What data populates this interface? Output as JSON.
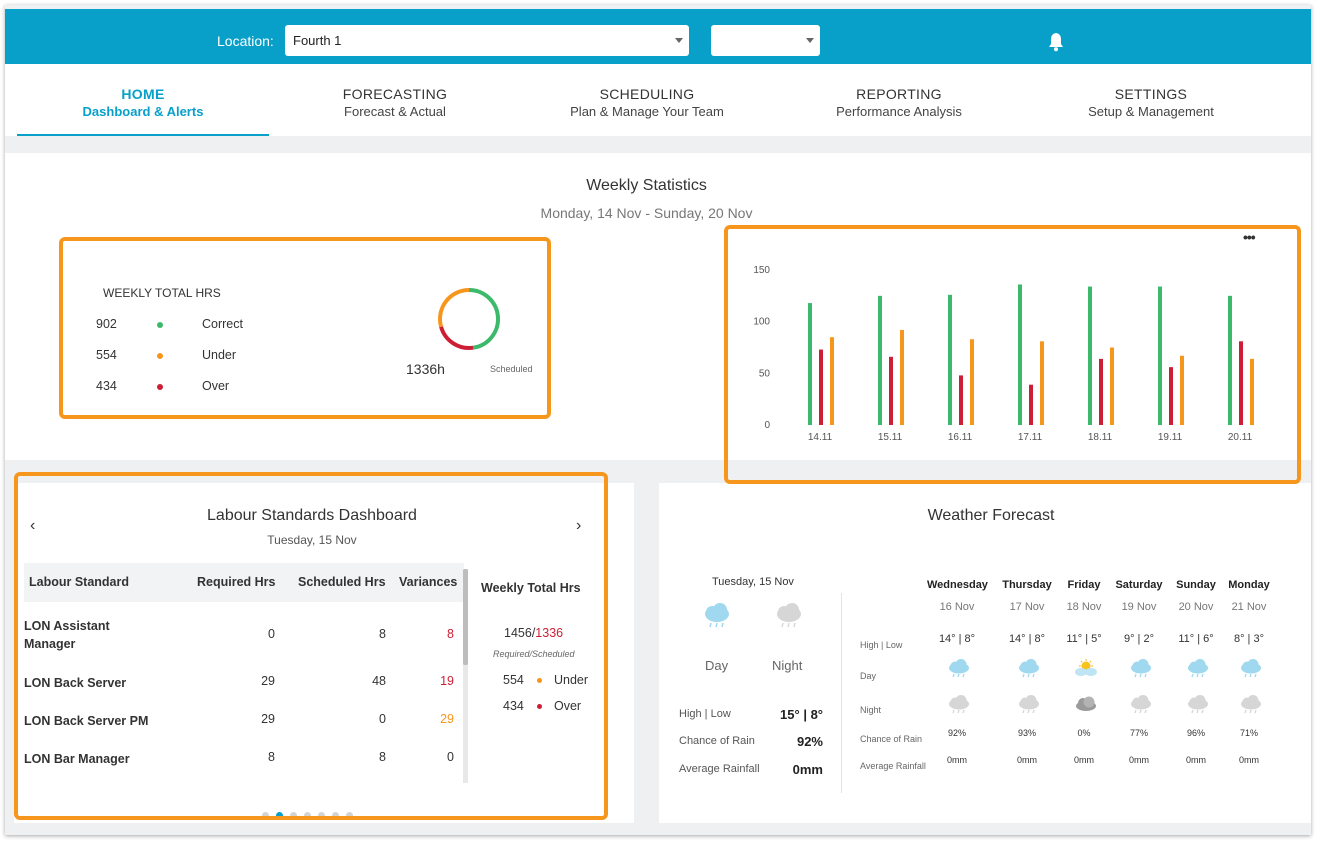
{
  "header": {
    "location_label": "Location:",
    "location_value": "Fourth 1",
    "secondary_value": ""
  },
  "nav": [
    {
      "title": "HOME",
      "subtitle": "Dashboard & Alerts",
      "active": true
    },
    {
      "title": "FORECASTING",
      "subtitle": "Forecast & Actual"
    },
    {
      "title": "SCHEDULING",
      "subtitle": "Plan & Manage Your Team"
    },
    {
      "title": "REPORTING",
      "subtitle": "Performance Analysis"
    },
    {
      "title": "SETTINGS",
      "subtitle": "Setup & Management"
    }
  ],
  "colors": {
    "brand": "#08a0c9",
    "correct": "#3cb96b",
    "under": "#f7961d",
    "over": "#cc1f36",
    "highlight": "#f7961d"
  },
  "weekly_stats": {
    "title": "Weekly Statistics",
    "date_range": "Monday, 14 Nov - Sunday, 20 Nov",
    "total_hrs": {
      "heading": "WEEKLY TOTAL HRS",
      "rows": [
        {
          "value": "902",
          "label": "Correct"
        },
        {
          "value": "554",
          "label": "Under"
        },
        {
          "value": "434",
          "label": "Over"
        }
      ],
      "total": "1336h",
      "caption": "Scheduled"
    },
    "more_icon": "more-horizontal-icon"
  },
  "chart_data": {
    "type": "bar",
    "categories": [
      "14.11",
      "15.11",
      "16.11",
      "17.11",
      "18.11",
      "19.11",
      "20.11"
    ],
    "series": [
      {
        "values": [
          118,
          125,
          126,
          136,
          134,
          134,
          125
        ]
      },
      {
        "values": [
          73,
          66,
          48,
          39,
          64,
          56,
          81
        ]
      },
      {
        "values": [
          85,
          92,
          83,
          81,
          75,
          67,
          64
        ]
      }
    ],
    "yticks": [
      0,
      50,
      100,
      150
    ],
    "ylim": [
      0,
      150
    ],
    "grid": false
  },
  "labour": {
    "title": "Labour Standards Dashboard",
    "date": "Tuesday, 15 Nov",
    "columns": [
      "Labour Standard",
      "Required Hrs",
      "Scheduled Hrs",
      "Variances"
    ],
    "rows": [
      {
        "name": "LON Assistant Manager",
        "required": "0",
        "scheduled": "8",
        "variance": "8",
        "variance_color": "#cc1f36"
      },
      {
        "name": "LON Back Server",
        "required": "29",
        "scheduled": "48",
        "variance": "19",
        "variance_color": "#cc1f36"
      },
      {
        "name": "LON Back Server PM",
        "required": "29",
        "scheduled": "0",
        "variance": "29",
        "variance_color": "#f7961d"
      },
      {
        "name": "LON Bar Manager",
        "required": "8",
        "scheduled": "8",
        "variance": "0",
        "variance_color": "#333333"
      }
    ],
    "weekly": {
      "heading": "Weekly Total Hrs",
      "required": "1456",
      "scheduled": "1336",
      "caption": "Required/Scheduled",
      "under_value": "554",
      "under_label": "Under",
      "over_value": "434",
      "over_label": "Over"
    },
    "pager_count": 7,
    "pager_active": 1
  },
  "weather": {
    "title": "Weather Forecast",
    "today": {
      "date": "Tuesday, 15 Nov",
      "day_label": "Day",
      "night_label": "Night",
      "high_low_label": "High | Low",
      "high_low": "15° | 8°",
      "rain_label": "Chance of Rain",
      "rain": "92%",
      "rainfall_label": "Average Rainfall",
      "rainfall": "0mm"
    },
    "row_labels": {
      "high_low": "High | Low",
      "day": "Day",
      "night": "Night",
      "rain": "Chance of Rain",
      "rainfall": "Average Rainfall"
    },
    "days": [
      {
        "name": "Wednesday",
        "date": "16 Nov",
        "high_low": "14° | 8°",
        "day_icon": "rain-cloud-icon",
        "night_icon": "rain-cloud-icon",
        "rain": "92%",
        "rainfall": "0mm"
      },
      {
        "name": "Thursday",
        "date": "17 Nov",
        "high_low": "14° | 8°",
        "day_icon": "rain-cloud-icon",
        "night_icon": "rain-cloud-icon",
        "rain": "93%",
        "rainfall": "0mm"
      },
      {
        "name": "Friday",
        "date": "18 Nov",
        "high_low": "11° | 5°",
        "day_icon": "sun-cloud-icon",
        "night_icon": "dark-cloud-icon",
        "rain": "0%",
        "rainfall": "0mm"
      },
      {
        "name": "Saturday",
        "date": "19 Nov",
        "high_low": "9° | 2°",
        "day_icon": "rain-cloud-icon",
        "night_icon": "rain-cloud-icon",
        "rain": "77%",
        "rainfall": "0mm"
      },
      {
        "name": "Sunday",
        "date": "20 Nov",
        "high_low": "11° | 6°",
        "day_icon": "rain-cloud-icon",
        "night_icon": "rain-cloud-icon",
        "rain": "96%",
        "rainfall": "0mm"
      },
      {
        "name": "Monday",
        "date": "21 Nov",
        "high_low": "8° | 3°",
        "day_icon": "rain-cloud-icon",
        "night_icon": "rain-cloud-icon",
        "rain": "71%",
        "rainfall": "0mm"
      }
    ]
  }
}
